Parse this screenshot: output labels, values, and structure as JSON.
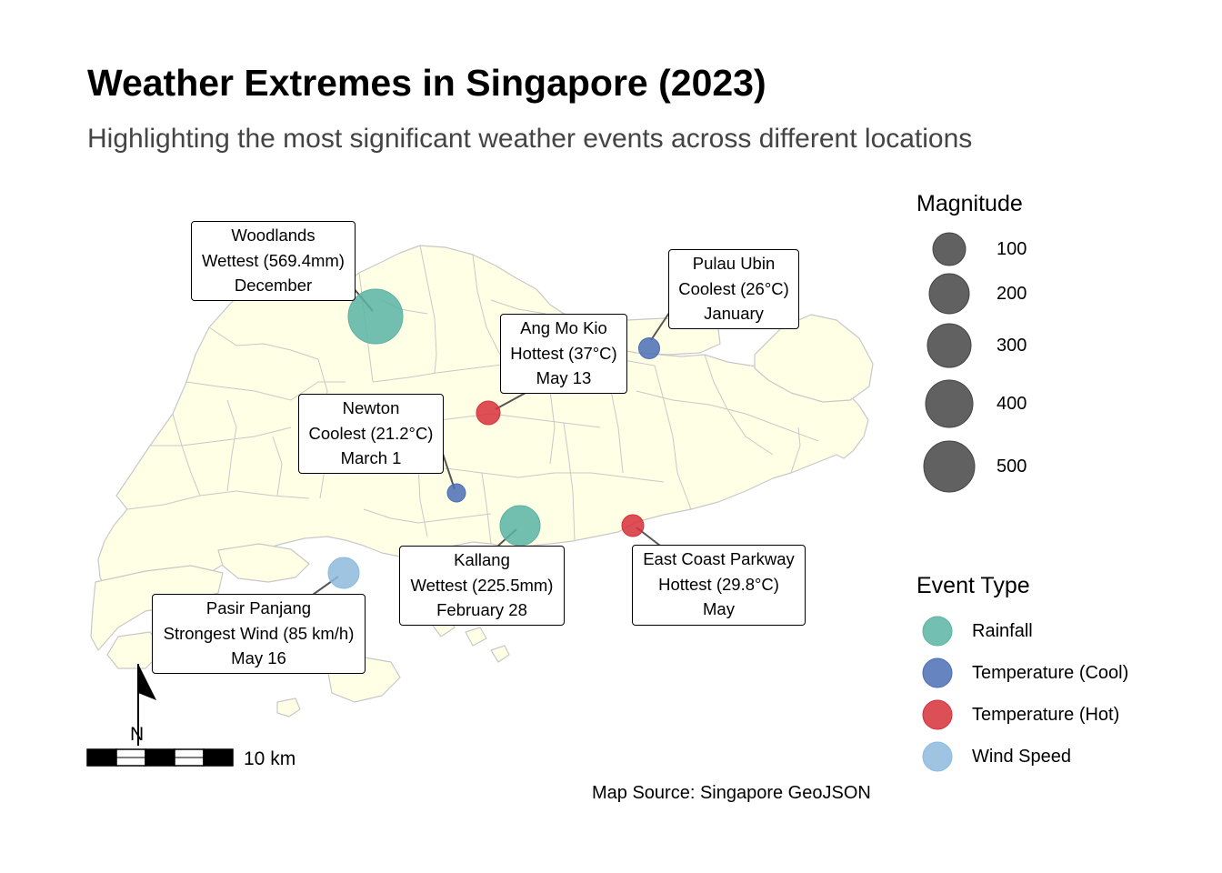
{
  "title": "Weather Extremes in Singapore (2023)",
  "subtitle": "Highlighting the most significant weather events across different locations",
  "source_caption": "Map Source: Singapore GeoJSON",
  "scale_bar": {
    "label": "10 km"
  },
  "north_arrow": {
    "label": "N"
  },
  "colors": {
    "land": "#FFFFE6",
    "boundary": "#C8C8C8",
    "rainfall": "#5AB4A4",
    "temperature_cool": "#4A6FB5",
    "temperature_hot": "#D7303A",
    "wind_speed": "#8DBADC",
    "size_legend": "#595959"
  },
  "legend_size": {
    "title": "Magnitude",
    "items": [
      {
        "value": 100,
        "label": "100"
      },
      {
        "value": 200,
        "label": "200"
      },
      {
        "value": 300,
        "label": "300"
      },
      {
        "value": 400,
        "label": "400"
      },
      {
        "value": 500,
        "label": "500"
      }
    ]
  },
  "legend_type": {
    "title": "Event Type",
    "items": [
      {
        "label": "Rainfall",
        "color_key": "rainfall"
      },
      {
        "label": "Temperature (Cool)",
        "color_key": "temperature_cool"
      },
      {
        "label": "Temperature (Hot)",
        "color_key": "temperature_hot"
      },
      {
        "label": "Wind Speed",
        "color_key": "wind_speed"
      }
    ]
  },
  "events": [
    {
      "location": "Woodlands",
      "event": "Wettest (569.4mm)",
      "date": "December",
      "type": "Rainfall",
      "color_key": "rainfall",
      "magnitude": 569.4
    },
    {
      "location": "Pulau Ubin",
      "event": "Coolest (26°C)",
      "date": "January",
      "type": "Temperature (Cool)",
      "color_key": "temperature_cool",
      "magnitude": 26
    },
    {
      "location": "Ang Mo Kio",
      "event": "Hottest (37°C)",
      "date": "May 13",
      "type": "Temperature (Hot)",
      "color_key": "temperature_hot",
      "magnitude": 37
    },
    {
      "location": "Newton",
      "event": "Coolest (21.2°C)",
      "date": "March 1",
      "type": "Temperature (Cool)",
      "color_key": "temperature_cool",
      "magnitude": 21.2
    },
    {
      "location": "Kallang",
      "event": "Wettest (225.5mm)",
      "date": "February 28",
      "type": "Rainfall",
      "color_key": "rainfall",
      "magnitude": 225.5
    },
    {
      "location": "East Coast Parkway",
      "event": "Hottest (29.8°C)",
      "date": "May",
      "type": "Temperature (Hot)",
      "color_key": "temperature_hot",
      "magnitude": 29.8
    },
    {
      "location": "Pasir Panjang",
      "event": "Strongest Wind (85 km/h)",
      "date": "May 16",
      "type": "Wind Speed",
      "color_key": "wind_speed",
      "magnitude": 85
    }
  ]
}
